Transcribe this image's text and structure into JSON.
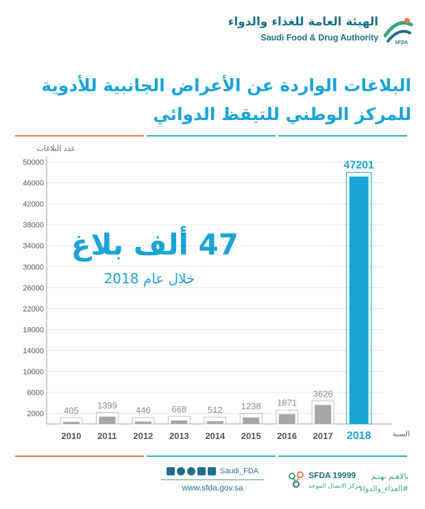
{
  "header": {
    "org_name_ar": "الهيئة العامة للغذاء والدواء",
    "org_name_en": "Saudi Food & Drug Authority",
    "logo_badge": "SFDA"
  },
  "title": {
    "line1": "البلاغات الواردة عن الأعراض الجانبية للأدوية",
    "line2": "للمركز الوطني للتيقظ الدوائي"
  },
  "highlight": {
    "headline": "47 ألف بلاغ",
    "subline": "خلال عام 2018"
  },
  "colors": {
    "accent": "#1aa4d6",
    "bar_gray": "#a6a6a6",
    "divider_orange": "#ef7d4a",
    "divider_teal": "#2bb3a8",
    "brand_dark": "#1d6f8a",
    "brand_green": "#3aa57a"
  },
  "chart_data": {
    "type": "bar",
    "ylabel": "عدد البلاغات",
    "xlabel": "السنة",
    "ylim": [
      0,
      50000
    ],
    "yticks": [
      2000,
      6000,
      10000,
      14000,
      18000,
      22000,
      26000,
      30000,
      34000,
      38000,
      42000,
      46000,
      50000
    ],
    "categories": [
      "2010",
      "2011",
      "2012",
      "2013",
      "2014",
      "2015",
      "2016",
      "2017",
      "2018"
    ],
    "values": [
      405,
      1399,
      446,
      668,
      512,
      1238,
      1871,
      3626,
      47201
    ],
    "highlight_category": "2018",
    "grid": true
  },
  "footer": {
    "slogan_line1": "بالاهـم نهتـم",
    "slogan_line2": "#الغذاء_والدواء",
    "social_handle": "Saudi_FDA",
    "social_icons": [
      "facebook-icon",
      "youtube-icon",
      "instagram-icon",
      "snapchat-icon",
      "twitter-icon"
    ],
    "website": "www.sfda.gov.sa",
    "hotline_number": "SFDA 19999",
    "hotline_label": "مركز الاتصال الموحد"
  }
}
